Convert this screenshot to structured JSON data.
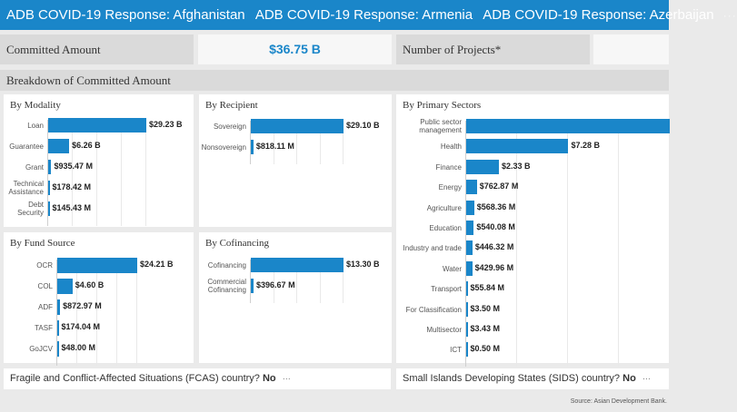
{
  "titlebar": {
    "tabs": [
      "ADB COVID-19 Response: Afghanistan",
      "ADB COVID-19 Response: Armenia",
      "ADB COVID-19 Response: Azerbaijan"
    ],
    "more": "···"
  },
  "kpis": {
    "committed_label": "Committed Amount",
    "committed_value": "$36.75 B",
    "projects_label": "Number of Projects*",
    "projects_value": ""
  },
  "breakdown_title": "Breakdown of Committed Amount",
  "panels": {
    "modality": {
      "title": "By Modality",
      "rows": [
        {
          "label": "Loan",
          "value": 29.23,
          "text": "$29.23 B"
        },
        {
          "label": "Guarantee",
          "value": 6.26,
          "text": "$6.26 B"
        },
        {
          "label": "Grant",
          "value": 0.93547,
          "text": "$935.47 M"
        },
        {
          "label": "Technical Assistance",
          "value": 0.17842,
          "text": "$178.42 M"
        },
        {
          "label": "Debt Security",
          "value": 0.14543,
          "text": "$145.43 M"
        }
      ]
    },
    "recipient": {
      "title": "By Recipient",
      "rows": [
        {
          "label": "Sovereign",
          "value": 29.1,
          "text": "$29.10 B"
        },
        {
          "label": "Nonsovereign",
          "value": 0.81811,
          "text": "$818.11 M"
        }
      ]
    },
    "fund": {
      "title": "By Fund Source",
      "rows": [
        {
          "label": "OCR",
          "value": 24.21,
          "text": "$24.21 B"
        },
        {
          "label": "COL",
          "value": 4.6,
          "text": "$4.60 B"
        },
        {
          "label": "ADF",
          "value": 0.87297,
          "text": "$872.97 M"
        },
        {
          "label": "TASF",
          "value": 0.17404,
          "text": "$174.04 M"
        },
        {
          "label": "GoJCV",
          "value": 0.048,
          "text": "$48.00 M"
        }
      ]
    },
    "cofinancing": {
      "title": "By Cofinancing",
      "rows": [
        {
          "label": "Cofinancing",
          "value": 13.3,
          "text": "$13.30 B"
        },
        {
          "label": "Commercial Cofinancing",
          "value": 0.39667,
          "text": "$396.67 M"
        }
      ]
    },
    "sectors": {
      "title": "By Primary Sectors",
      "rows": [
        {
          "label": "Public sector management",
          "value": 14.5,
          "text": ""
        },
        {
          "label": "Health",
          "value": 7.28,
          "text": "$7.28 B"
        },
        {
          "label": "Finance",
          "value": 2.33,
          "text": "$2.33 B"
        },
        {
          "label": "Energy",
          "value": 0.76287,
          "text": "$762.87 M"
        },
        {
          "label": "Agriculture",
          "value": 0.56836,
          "text": "$568.36 M"
        },
        {
          "label": "Education",
          "value": 0.54008,
          "text": "$540.08 M"
        },
        {
          "label": "Industry and trade",
          "value": 0.44632,
          "text": "$446.32 M"
        },
        {
          "label": "Water",
          "value": 0.42996,
          "text": "$429.96 M"
        },
        {
          "label": "Transport",
          "value": 0.05584,
          "text": "$55.84 M"
        },
        {
          "label": "For Classification",
          "value": 0.0035,
          "text": "$3.50 M"
        },
        {
          "label": "Multisector",
          "value": 0.00343,
          "text": "$3.43 M"
        },
        {
          "label": "ICT",
          "value": 0.0005,
          "text": "$0.50 M"
        }
      ]
    }
  },
  "footer": {
    "fcas_question": "Fragile and Conflict-Affected Situations (FCAS) country?",
    "fcas_answer": "No",
    "sids_question": "Small Islands Developing States (SIDS) country?",
    "sids_answer": "No",
    "more": "···",
    "source": "Source: Asian Development Bank."
  },
  "colors": {
    "accent": "#1a86c9",
    "panel_bg": "#ffffff",
    "page_bg": "#eaeaea"
  }
}
